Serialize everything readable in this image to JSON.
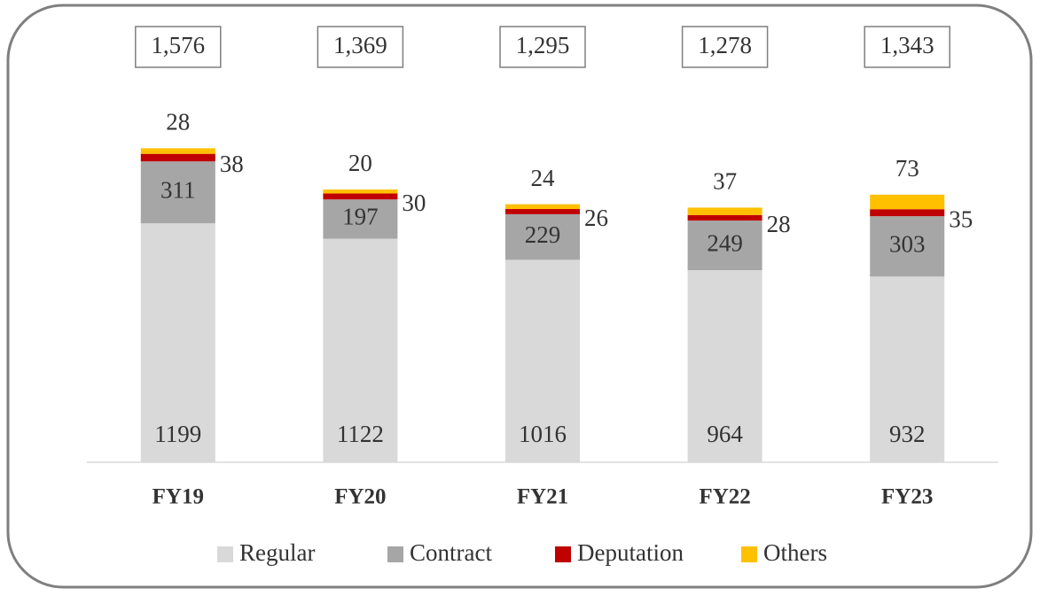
{
  "chart_data": {
    "type": "stacked_bar",
    "categories": [
      "FY19",
      "FY20",
      "FY21",
      "FY22",
      "FY23"
    ],
    "total_labels": [
      "1,576",
      "1,369",
      "1,295",
      "1,278",
      "1,343"
    ],
    "series": [
      {
        "name": "Regular",
        "color": "#d9d9d9",
        "values": [
          1199,
          1122,
          1016,
          964,
          932
        ]
      },
      {
        "name": "Contract",
        "color": "#a6a6a6",
        "values": [
          311,
          197,
          229,
          249,
          303
        ]
      },
      {
        "name": "Deputation",
        "color": "#c00000",
        "values": [
          38,
          30,
          26,
          28,
          35
        ]
      },
      {
        "name": "Others",
        "color": "#ffc000",
        "values": [
          28,
          20,
          24,
          37,
          73
        ]
      }
    ],
    "ylim": [
      0,
      1600
    ]
  }
}
